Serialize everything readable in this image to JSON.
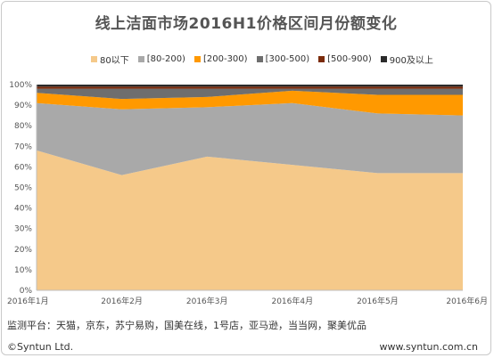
{
  "chart_data": {
    "type": "area",
    "stacked": true,
    "percent": true,
    "title": "线上洁面市场2016H1价格区间月份额变化",
    "categories": [
      "2016年1月",
      "2016年2月",
      "2016年3月",
      "2016年4月",
      "2016年5月",
      "2016年6月"
    ],
    "series": [
      {
        "name": "80以下",
        "color": "#f5c98a",
        "values": [
          68,
          56,
          65,
          61,
          57,
          57
        ]
      },
      {
        "name": "[80-200)",
        "color": "#a9a9a9",
        "values": [
          23,
          32,
          24,
          30,
          29,
          28
        ]
      },
      {
        "name": "[200-300)",
        "color": "#ff9900",
        "values": [
          5,
          5,
          5,
          6,
          9,
          10
        ]
      },
      {
        "name": "[300-500)",
        "color": "#6e6e6e",
        "values": [
          2,
          5,
          4,
          1,
          3,
          3
        ]
      },
      {
        "name": "[500-900)",
        "color": "#7b2b0b",
        "values": [
          1,
          1,
          1,
          1,
          1,
          1
        ]
      },
      {
        "name": "900及以上",
        "color": "#2b2b2b",
        "values": [
          1,
          1,
          1,
          1,
          1,
          1
        ]
      }
    ],
    "ylim": [
      0,
      100
    ],
    "yticks": [
      "0%",
      "10%",
      "20%",
      "30%",
      "40%",
      "50%",
      "60%",
      "70%",
      "80%",
      "90%",
      "100%"
    ],
    "grid": false,
    "legend_position": "top"
  },
  "footer": {
    "source": "监测平台：天猫，京东，苏宁易购，国美在线，1号店，亚马逊，当当网，聚美优品",
    "copyright": "©Syntun Ltd.",
    "website": "www.syntun.com.cn"
  }
}
